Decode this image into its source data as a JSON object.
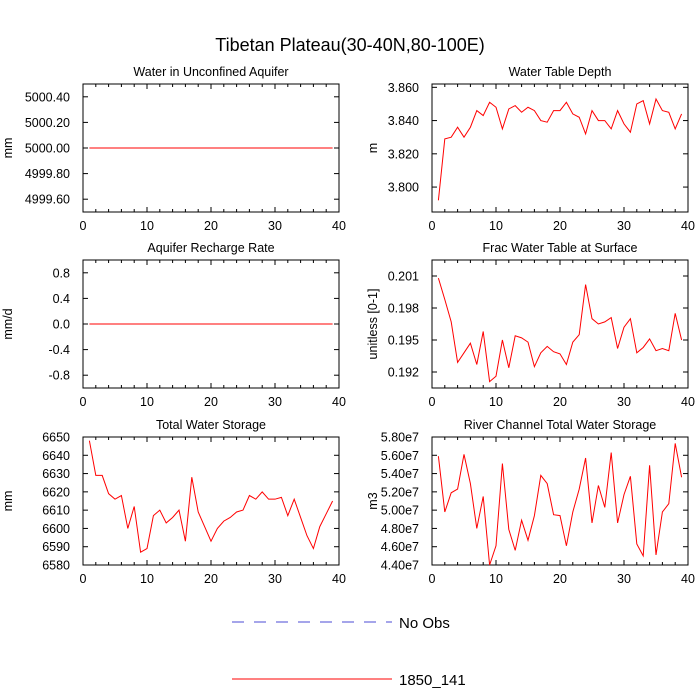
{
  "main_title": "Tibetan Plateau(30-40N,80-100E)",
  "legend": {
    "entries": [
      {
        "label": "No Obs",
        "color": "#4b4bd6",
        "dash": true
      },
      {
        "label": "1850_141",
        "color": "#ff0000",
        "dash": false
      }
    ]
  },
  "chart_data": [
    {
      "type": "line",
      "title": "Water in Unconfined Aquifer",
      "ylabel": "mm",
      "xlabel": "",
      "xlim": [
        0,
        40
      ],
      "ylim": [
        4999.5,
        5000.5
      ],
      "xticks": [
        0,
        10,
        20,
        30,
        40
      ],
      "xtick_labels": [
        "0",
        "10",
        "20",
        "30",
        "40"
      ],
      "yticks": [
        4999.6,
        4999.8,
        5000.0,
        5000.2,
        5000.4
      ],
      "ytick_labels": [
        "4999.60",
        "4999.80",
        "5000.00",
        "5000.20",
        "5000.40"
      ],
      "series": [
        {
          "name": "1850_141",
          "color": "#ff0000",
          "x": [
            1,
            39
          ],
          "values": [
            5000.0,
            5000.0
          ]
        }
      ]
    },
    {
      "type": "line",
      "title": "Water Table Depth",
      "ylabel": "m",
      "xlabel": "",
      "xlim": [
        0,
        40
      ],
      "ylim": [
        3.785,
        3.862
      ],
      "xticks": [
        0,
        10,
        20,
        30,
        40
      ],
      "xtick_labels": [
        "0",
        "10",
        "20",
        "30",
        "40"
      ],
      "yticks": [
        3.8,
        3.82,
        3.84,
        3.86
      ],
      "ytick_labels": [
        "3.800",
        "3.820",
        "3.840",
        "3.860"
      ],
      "series": [
        {
          "name": "1850_141",
          "color": "#ff0000",
          "x": [
            1,
            2,
            3,
            4,
            5,
            6,
            7,
            8,
            9,
            10,
            11,
            12,
            13,
            14,
            15,
            16,
            17,
            18,
            19,
            20,
            21,
            22,
            23,
            24,
            25,
            26,
            27,
            28,
            29,
            30,
            31,
            32,
            33,
            34,
            35,
            36,
            37,
            38,
            39
          ],
          "values": [
            3.792,
            3.829,
            3.83,
            3.836,
            3.83,
            3.836,
            3.846,
            3.843,
            3.851,
            3.848,
            3.835,
            3.847,
            3.849,
            3.845,
            3.848,
            3.846,
            3.84,
            3.839,
            3.846,
            3.846,
            3.851,
            3.844,
            3.842,
            3.832,
            3.846,
            3.84,
            3.84,
            3.835,
            3.846,
            3.838,
            3.833,
            3.85,
            3.852,
            3.838,
            3.853,
            3.846,
            3.845,
            3.835,
            3.844
          ]
        }
      ]
    },
    {
      "type": "line",
      "title": "Aquifer Recharge Rate",
      "ylabel": "mm/d",
      "xlabel": "",
      "xlim": [
        0,
        40
      ],
      "ylim": [
        -1.0,
        1.0
      ],
      "xticks": [
        0,
        10,
        20,
        30,
        40
      ],
      "xtick_labels": [
        "0",
        "10",
        "20",
        "30",
        "40"
      ],
      "yticks": [
        -0.8,
        -0.4,
        0.0,
        0.4,
        0.8
      ],
      "ytick_labels": [
        "-0.8",
        "-0.4",
        "0.0",
        "0.4",
        "0.8"
      ],
      "series": [
        {
          "name": "1850_141",
          "color": "#ff0000",
          "x": [
            1,
            39
          ],
          "values": [
            0.0,
            0.0
          ]
        }
      ]
    },
    {
      "type": "line",
      "title": "Frac Water Table at Surface",
      "ylabel": "unitless [0-1]",
      "xlabel": "",
      "xlim": [
        0,
        40
      ],
      "ylim": [
        0.1905,
        0.2025
      ],
      "xticks": [
        0,
        10,
        20,
        30,
        40
      ],
      "xtick_labels": [
        "0",
        "10",
        "20",
        "30",
        "40"
      ],
      "yticks": [
        0.192,
        0.195,
        0.198,
        0.201
      ],
      "ytick_labels": [
        "0.192",
        "0.195",
        "0.198",
        "0.201"
      ],
      "series": [
        {
          "name": "1850_141",
          "color": "#ff0000",
          "x": [
            1,
            2,
            3,
            4,
            5,
            6,
            7,
            8,
            9,
            10,
            11,
            12,
            13,
            14,
            15,
            16,
            17,
            18,
            19,
            20,
            21,
            22,
            23,
            24,
            25,
            26,
            27,
            28,
            29,
            30,
            31,
            32,
            33,
            34,
            35,
            36,
            37,
            38,
            39
          ],
          "values": [
            0.2008,
            0.1988,
            0.1967,
            0.1929,
            0.1938,
            0.1947,
            0.1927,
            0.1958,
            0.1911,
            0.1916,
            0.195,
            0.1924,
            0.1954,
            0.1952,
            0.1948,
            0.1925,
            0.1938,
            0.1944,
            0.1939,
            0.1937,
            0.1927,
            0.1948,
            0.1955,
            0.2002,
            0.197,
            0.1965,
            0.1967,
            0.1971,
            0.1942,
            0.1962,
            0.197,
            0.1938,
            0.1943,
            0.1951,
            0.194,
            0.1942,
            0.194,
            0.1975,
            0.195
          ]
        }
      ]
    },
    {
      "type": "line",
      "title": "Total Water Storage",
      "ylabel": "mm",
      "xlabel": "",
      "xlim": [
        0,
        40
      ],
      "ylim": [
        6580,
        6650
      ],
      "xticks": [
        0,
        10,
        20,
        30,
        40
      ],
      "xtick_labels": [
        "0",
        "10",
        "20",
        "30",
        "40"
      ],
      "yticks": [
        6580,
        6590,
        6600,
        6610,
        6620,
        6630,
        6640,
        6650
      ],
      "ytick_labels": [
        "6580",
        "6590",
        "6600",
        "6610",
        "6620",
        "6630",
        "6640",
        "6650"
      ],
      "series": [
        {
          "name": "1850_141",
          "color": "#ff0000",
          "x": [
            1,
            2,
            3,
            4,
            5,
            6,
            7,
            8,
            9,
            10,
            11,
            12,
            13,
            14,
            15,
            16,
            17,
            18,
            19,
            20,
            21,
            22,
            23,
            24,
            25,
            26,
            27,
            28,
            29,
            30,
            31,
            32,
            33,
            34,
            35,
            36,
            37,
            38,
            39
          ],
          "values": [
            6648,
            6629,
            6629,
            6619,
            6616,
            6618,
            6600,
            6612,
            6587,
            6589,
            6607,
            6610,
            6603,
            6606,
            6610,
            6593,
            6628,
            6609,
            6601,
            6593,
            6600,
            6604,
            6606,
            6609,
            6610,
            6618,
            6616,
            6620,
            6616,
            6616,
            6617,
            6607,
            6616,
            6606,
            6596,
            6589,
            6601,
            6608,
            6615
          ]
        }
      ]
    },
    {
      "type": "line",
      "title": "River Channel Total Water Storage",
      "ylabel": "m3",
      "xlabel": "",
      "xlim": [
        0,
        40
      ],
      "ylim": [
        44000000,
        58000000
      ],
      "xticks": [
        0,
        10,
        20,
        30,
        40
      ],
      "xtick_labels": [
        "0",
        "10",
        "20",
        "30",
        "40"
      ],
      "yticks": [
        44000000,
        46000000,
        48000000,
        50000000,
        52000000,
        54000000,
        56000000,
        58000000
      ],
      "ytick_labels": [
        "4.40e7",
        "4.60e7",
        "4.80e7",
        "5.00e7",
        "5.20e7",
        "5.40e7",
        "5.60e7",
        "5.80e7"
      ],
      "series": [
        {
          "name": "1850_141",
          "color": "#ff0000",
          "x": [
            1,
            2,
            3,
            4,
            5,
            6,
            7,
            8,
            9,
            10,
            11,
            12,
            13,
            14,
            15,
            16,
            17,
            18,
            19,
            20,
            21,
            22,
            23,
            24,
            25,
            26,
            27,
            28,
            29,
            30,
            31,
            32,
            33,
            34,
            35,
            36,
            37,
            38,
            39
          ],
          "values": [
            55900000,
            49800000,
            51900000,
            52300000,
            56100000,
            52900000,
            48000000,
            51500000,
            44000000,
            46100000,
            55100000,
            47900000,
            45600000,
            48900000,
            46700000,
            49400000,
            53800000,
            52900000,
            49500000,
            49400000,
            46100000,
            49800000,
            52300000,
            55700000,
            48600000,
            52700000,
            50300000,
            56300000,
            48600000,
            51700000,
            53700000,
            46300000,
            45000000,
            54900000,
            45100000,
            49800000,
            50700000,
            57300000,
            53600000
          ]
        }
      ]
    }
  ]
}
